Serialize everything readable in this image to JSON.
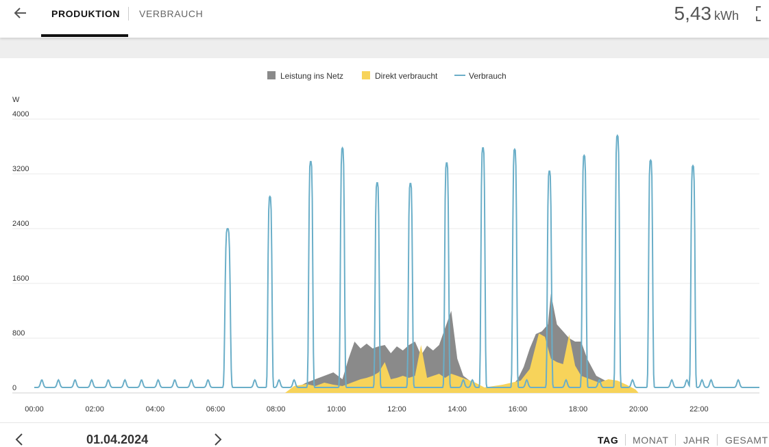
{
  "header": {
    "tabs": [
      {
        "label": "PRODUKTION",
        "active": true
      },
      {
        "label": "VERBRAUCH",
        "active": false
      }
    ],
    "total_value": "5,43",
    "total_unit": "kWh",
    "icons": {
      "back": "arrow-left-icon",
      "expand": "fullscreen-icon"
    }
  },
  "footer": {
    "date": "01.04.2024",
    "periods": [
      {
        "label": "TAG",
        "active": true
      },
      {
        "label": "MONAT",
        "active": false
      },
      {
        "label": "JAHR",
        "active": false
      },
      {
        "label": "GESAMT",
        "active": false
      }
    ],
    "icons": {
      "prev": "chevron-left-icon",
      "next": "chevron-right-icon"
    }
  },
  "chart_data": {
    "type": "area",
    "ylabel": "W",
    "ylim": [
      0,
      4000
    ],
    "yticks": [
      "0",
      "800",
      "1600",
      "2400",
      "3200",
      "4000"
    ],
    "xlim_hours": [
      0,
      24
    ],
    "xticks": [
      "00:00",
      "02:00",
      "04:00",
      "06:00",
      "08:00",
      "10:00",
      "12:00",
      "14:00",
      "16:00",
      "18:00",
      "20:00",
      "22:00"
    ],
    "grid": true,
    "legend_position": "top-center",
    "colors": {
      "grid": "#e9e9e9",
      "grid_feed": "#8a8a8a",
      "direct": "#f7d35a",
      "consumption": "#6aaec8"
    },
    "series": [
      {
        "name": "Leistung ins Netz",
        "kind": "area",
        "x": [
          8.3,
          8.7,
          9.0,
          9.3,
          9.6,
          9.9,
          10.2,
          10.4,
          10.6,
          10.8,
          11.0,
          11.2,
          11.4,
          11.6,
          11.8,
          12.0,
          12.2,
          12.4,
          12.6,
          12.8,
          13.0,
          13.2,
          13.4,
          13.6,
          13.8,
          14.0,
          14.2,
          14.5,
          14.8,
          15.2,
          15.5,
          15.8,
          16.0,
          16.2,
          16.4,
          16.6,
          16.8,
          17.0,
          17.1,
          17.3,
          17.5,
          17.7,
          17.9,
          18.1,
          18.3,
          18.6,
          18.9,
          19.2,
          19.5,
          19.8,
          20.0
        ],
        "values": [
          0,
          80,
          150,
          200,
          250,
          300,
          200,
          500,
          750,
          650,
          720,
          650,
          680,
          700,
          580,
          680,
          620,
          700,
          750,
          550,
          690,
          620,
          700,
          950,
          1200,
          500,
          250,
          150,
          50,
          30,
          30,
          100,
          200,
          380,
          650,
          860,
          900,
          1000,
          1450,
          1000,
          900,
          800,
          750,
          750,
          500,
          250,
          180,
          100,
          50,
          20,
          0
        ]
      },
      {
        "name": "Direkt verbraucht",
        "kind": "area",
        "x": [
          8.3,
          8.6,
          9.0,
          9.3,
          9.6,
          9.9,
          10.2,
          10.5,
          10.8,
          11.0,
          11.2,
          11.4,
          11.6,
          11.8,
          12.0,
          12.2,
          12.4,
          12.6,
          12.8,
          13.0,
          13.2,
          13.4,
          13.6,
          13.8,
          14.0,
          14.3,
          14.6,
          14.9,
          15.2,
          15.5,
          15.8,
          16.1,
          16.4,
          16.7,
          16.9,
          17.1,
          17.3,
          17.5,
          17.7,
          17.9,
          18.1,
          18.4,
          18.7,
          19.0,
          19.3,
          19.6,
          19.9,
          20.0
        ],
        "values": [
          0,
          100,
          130,
          100,
          150,
          120,
          100,
          150,
          200,
          220,
          250,
          300,
          450,
          200,
          220,
          250,
          220,
          250,
          700,
          220,
          250,
          280,
          220,
          280,
          250,
          200,
          150,
          80,
          100,
          120,
          150,
          180,
          350,
          870,
          820,
          500,
          450,
          420,
          850,
          400,
          250,
          200,
          150,
          200,
          180,
          120,
          50,
          0
        ]
      },
      {
        "name": "Verbrauch",
        "kind": "line",
        "spikes": [
          {
            "x": 6.4,
            "peak": 2400,
            "w": 0.18
          },
          {
            "x": 7.8,
            "peak": 2870,
            "w": 0.14
          },
          {
            "x": 9.15,
            "peak": 3380,
            "w": 0.14
          },
          {
            "x": 10.2,
            "peak": 3580,
            "w": 0.14
          },
          {
            "x": 11.35,
            "peak": 3070,
            "w": 0.14
          },
          {
            "x": 12.45,
            "peak": 3060,
            "w": 0.14
          },
          {
            "x": 13.65,
            "peak": 3360,
            "w": 0.14
          },
          {
            "x": 14.85,
            "peak": 3580,
            "w": 0.14
          },
          {
            "x": 15.9,
            "peak": 3560,
            "w": 0.14
          },
          {
            "x": 17.05,
            "peak": 3240,
            "w": 0.14
          },
          {
            "x": 18.2,
            "peak": 3470,
            "w": 0.14
          },
          {
            "x": 19.3,
            "peak": 3760,
            "w": 0.14
          },
          {
            "x": 20.4,
            "peak": 3400,
            "w": 0.14
          },
          {
            "x": 21.8,
            "peak": 3320,
            "w": 0.14
          }
        ],
        "small_bumps": [
          0.25,
          0.8,
          1.35,
          1.9,
          2.45,
          3.0,
          3.55,
          4.1,
          4.65,
          5.2,
          5.75,
          7.3,
          8.1,
          8.6,
          14.2,
          14.5,
          16.3,
          17.6,
          18.7,
          19.8,
          21.1,
          21.6,
          22.1,
          22.4,
          23.3
        ],
        "baseline": 80
      }
    ]
  }
}
